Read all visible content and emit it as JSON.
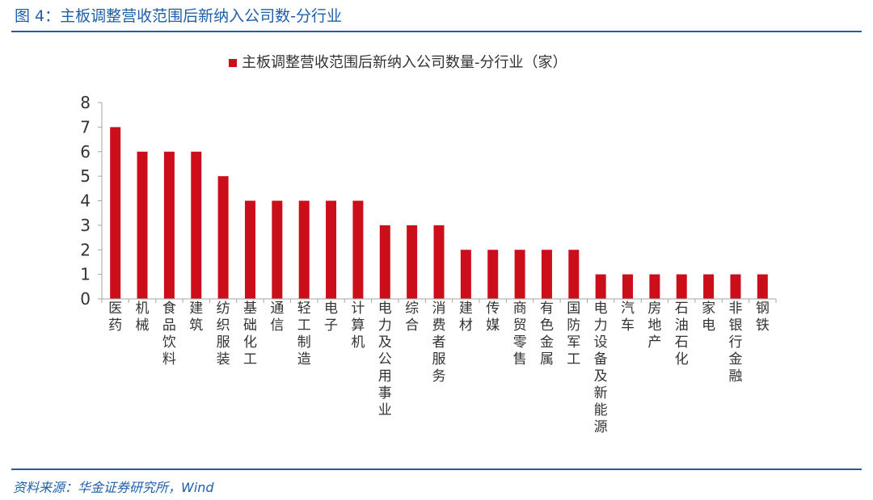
{
  "figure": {
    "title": "图 4：主板调整营收范围后新纳入公司数-分行业",
    "source": "资料来源：华金证券研究所，Wind"
  },
  "colors": {
    "accent": "#1f5fa8",
    "bar": "#cc0e1b"
  },
  "chart_data": {
    "type": "bar",
    "categories": [
      "医药",
      "机械",
      "食品饮料",
      "建筑",
      "纺织服装",
      "基础化工",
      "通信",
      "轻工制造",
      "电子",
      "计算机",
      "电力及公用事业",
      "综合",
      "消费者服务",
      "建材",
      "传媒",
      "商贸零售",
      "有色金属",
      "国防军工",
      "电力设备及新能源",
      "汽车",
      "房地产",
      "石油石化",
      "家电",
      "非银行金融",
      "钢铁"
    ],
    "series": [
      {
        "name": "主板调整营收范围后新纳入公司数量-分行业（家）",
        "values": [
          7,
          6,
          6,
          6,
          5,
          4,
          4,
          4,
          4,
          4,
          3,
          3,
          3,
          2,
          2,
          2,
          2,
          2,
          1,
          1,
          1,
          1,
          1,
          1,
          1
        ]
      }
    ],
    "yticks": [
      "0",
      "1",
      "2",
      "3",
      "4",
      "5",
      "6",
      "7",
      "8"
    ],
    "ylim": [
      0,
      8
    ],
    "legend_position": "top-center",
    "grid": false
  }
}
